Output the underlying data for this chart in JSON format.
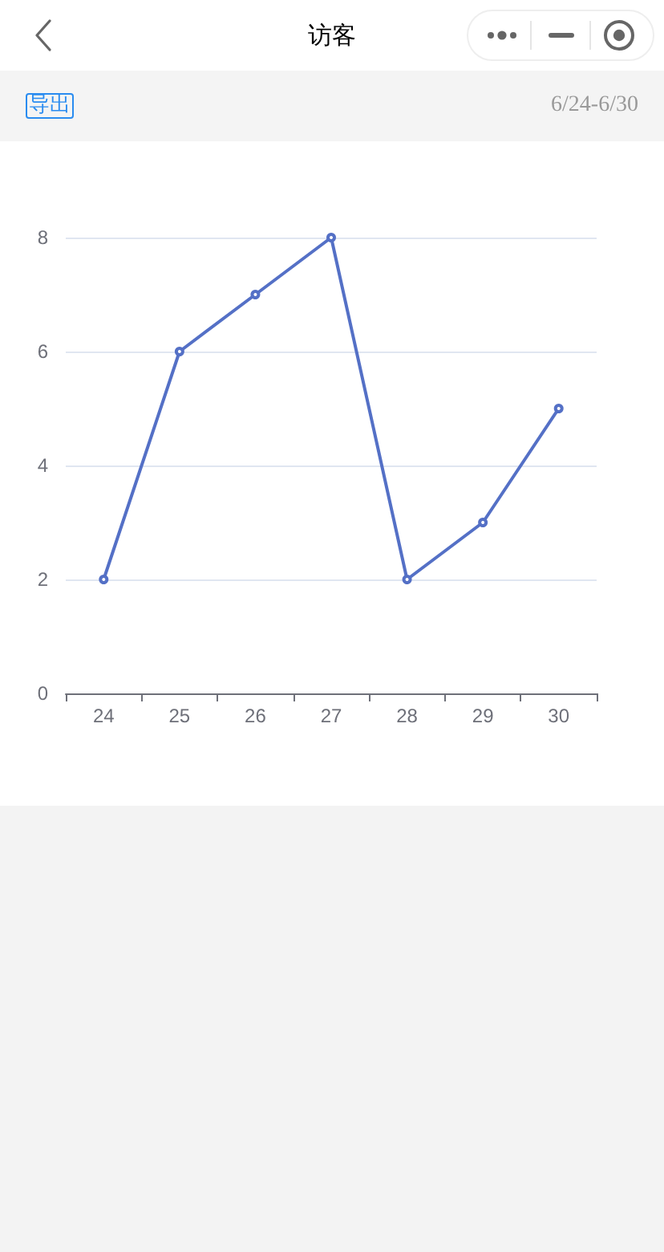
{
  "chart_data": {
    "type": "line",
    "title": "访客",
    "subtitle": "6/24-6/30",
    "annotations": [
      "导出"
    ],
    "categories": [
      "24",
      "25",
      "26",
      "27",
      "28",
      "29",
      "30"
    ],
    "series": [
      {
        "color": "#5470c6",
        "values": [
          2,
          6,
          7,
          8,
          2,
          3,
          5
        ]
      }
    ],
    "ylim": [
      0,
      8
    ],
    "yticks": [
      0,
      2,
      4,
      6,
      8
    ],
    "grid": "y",
    "marker": "circle",
    "line_style": "solid"
  }
}
